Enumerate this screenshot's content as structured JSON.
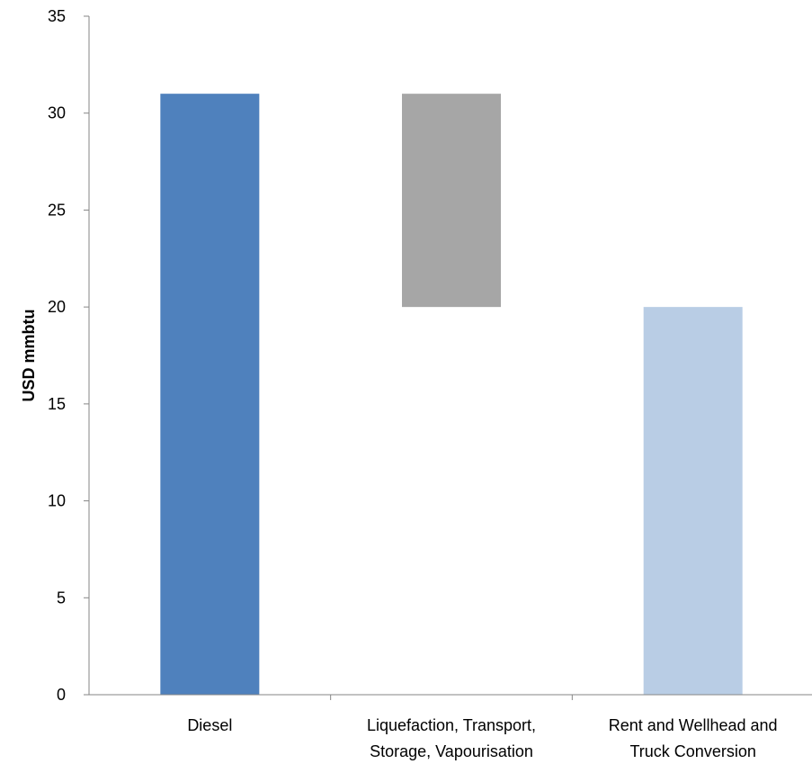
{
  "chart_data": {
    "type": "bar",
    "variant": "waterfall",
    "title": "",
    "xlabel": "",
    "ylabel": "USD mmbtu",
    "ylim": [
      0,
      35
    ],
    "yticks": [
      0,
      5,
      10,
      15,
      20,
      25,
      30,
      35
    ],
    "grid": false,
    "legend": "none",
    "categories": [
      [
        "Diesel"
      ],
      [
        "Liquefaction, Transport,",
        "Storage, Vapourisation"
      ],
      [
        "Rent and Wellhead and",
        "Truck Conversion"
      ]
    ],
    "bars": [
      {
        "category": "Diesel",
        "base": 0,
        "top": 31,
        "value": 31,
        "color": "#4f81bd"
      },
      {
        "category": "Liquefaction, Transport, Storage, Vapourisation",
        "base": 20,
        "top": 31,
        "value": 11,
        "color": "#a6a6a6"
      },
      {
        "category": "Rent and Wellhead and Truck Conversion",
        "base": 0,
        "top": 20,
        "value": 20,
        "color": "#b9cde5"
      }
    ],
    "axis_color": "#868686"
  }
}
